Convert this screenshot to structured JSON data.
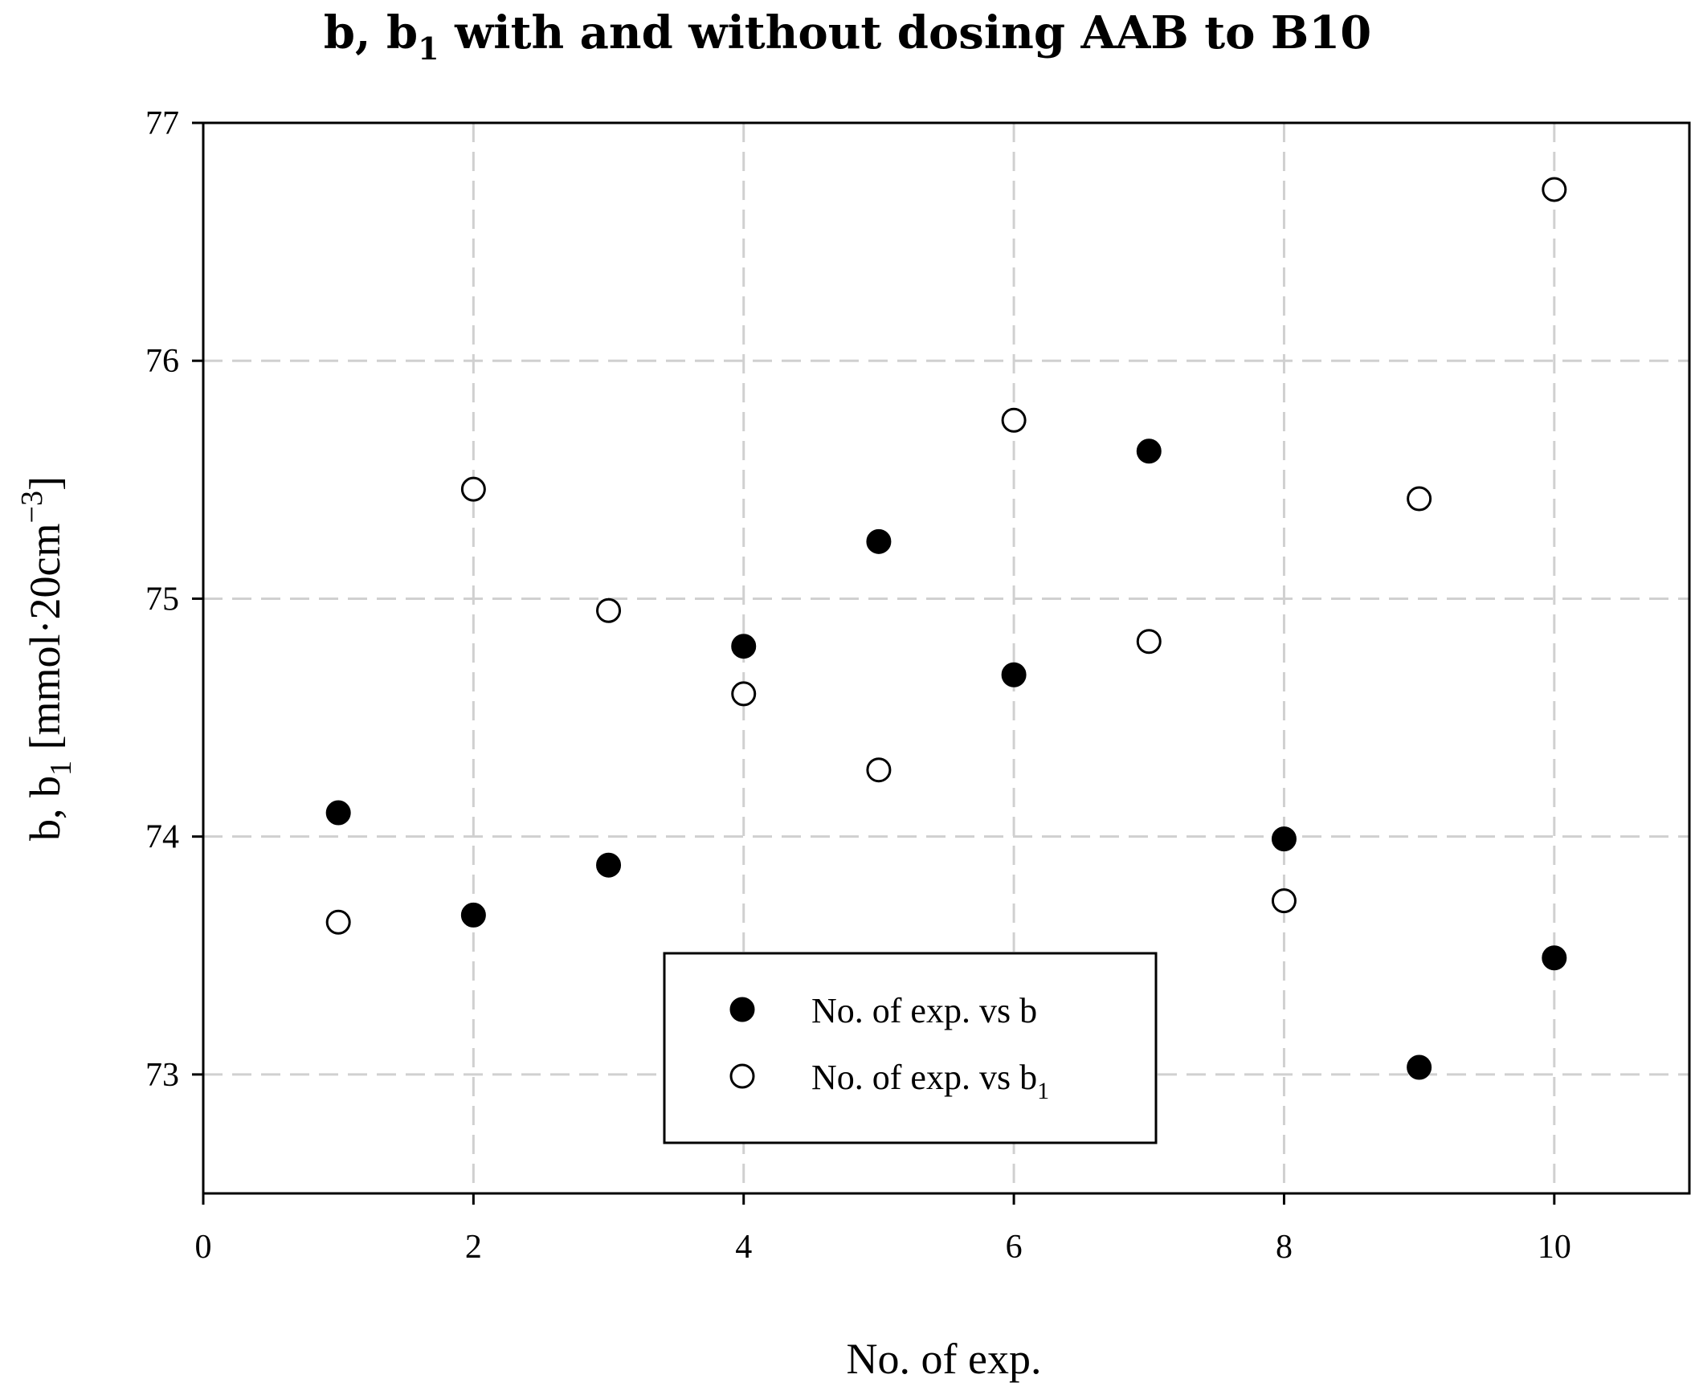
{
  "chart_data": {
    "type": "scatter",
    "title": "b, b",
    "title_sub": "1",
    "title_rest": " with and without dosing AAB to B10",
    "xlabel": "No. of exp.",
    "ylabel": "b, b",
    "ylabel_sub": "1",
    "ylabel_unit": " [mmol·20cm",
    "ylabel_sup": "−3",
    "ylabel_close": "]",
    "xlim": [
      0,
      11
    ],
    "ylim": [
      72.5,
      77
    ],
    "xticks": [
      0,
      2,
      4,
      6,
      8,
      10
    ],
    "yticks": [
      73,
      74,
      75,
      76,
      77
    ],
    "grid": true,
    "legend_position": "bottom-center",
    "series": [
      {
        "name": "No. of exp. vs b",
        "marker": "filled-circle",
        "x": [
          1,
          2,
          3,
          4,
          5,
          6,
          7,
          8,
          9,
          10
        ],
        "y": [
          74.1,
          73.67,
          73.88,
          74.8,
          75.24,
          74.68,
          75.62,
          73.99,
          73.03,
          73.49
        ]
      },
      {
        "name": "No. of exp. vs b",
        "name_sub": "1",
        "marker": "open-circle",
        "x": [
          1,
          2,
          3,
          4,
          5,
          6,
          7,
          8,
          9,
          10
        ],
        "y": [
          73.64,
          75.46,
          74.95,
          74.6,
          74.28,
          75.75,
          74.82,
          73.73,
          75.42,
          76.72
        ]
      }
    ]
  }
}
